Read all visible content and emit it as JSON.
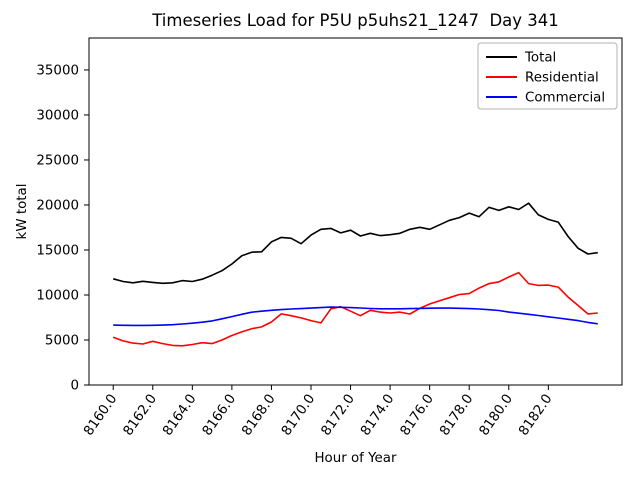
{
  "chart_data": {
    "type": "line",
    "title": "Timeseries Load for P5U p5uhs21_1247  Day 341",
    "xlabel": "Hour of Year",
    "ylabel": "kW total",
    "grid": false,
    "background": "#ffffff",
    "xlim": [
      8158.775,
      8185.725
    ],
    "ylim": [
      0,
      38550
    ],
    "xticks": {
      "values": [
        8160,
        8162,
        8164,
        8166,
        8168,
        8170,
        8172,
        8174,
        8176,
        8178,
        8180,
        8182
      ],
      "labels": [
        "8160.0",
        "8162.0",
        "8164.0",
        "8166.0",
        "8168.0",
        "8170.0",
        "8172.0",
        "8174.0",
        "8176.0",
        "8178.0",
        "8180.0",
        "8182.0"
      ]
    },
    "yticks": {
      "values": [
        0,
        5000,
        10000,
        15000,
        20000,
        25000,
        30000,
        35000
      ],
      "labels": [
        "0",
        "5000",
        "10000",
        "15000",
        "20000",
        "25000",
        "30000",
        "35000"
      ]
    },
    "legend": {
      "location": "upper right",
      "entries": [
        "Total",
        "Residential",
        "Commercial"
      ]
    },
    "x": [
      8160.0,
      8160.5,
      8161.0,
      8161.5,
      8162.0,
      8162.5,
      8163.0,
      8163.5,
      8164.0,
      8164.5,
      8165.0,
      8165.5,
      8166.0,
      8166.5,
      8167.0,
      8167.5,
      8168.0,
      8168.5,
      8169.0,
      8169.5,
      8170.0,
      8170.5,
      8171.0,
      8171.5,
      8172.0,
      8172.5,
      8173.0,
      8173.5,
      8174.0,
      8174.5,
      8175.0,
      8175.5,
      8176.0,
      8176.5,
      8177.0,
      8177.5,
      8178.0,
      8178.5,
      8179.0,
      8179.5,
      8180.0,
      8180.5,
      8181.0,
      8181.5,
      8182.0,
      8182.5,
      8183.0,
      8183.5,
      8184.0,
      8184.5
    ],
    "series": [
      {
        "name": "Total",
        "color": "#000000",
        "values": [
          11800,
          11500,
          11350,
          11520,
          11400,
          11300,
          11350,
          11600,
          11500,
          11750,
          12200,
          12700,
          13440,
          14350,
          14750,
          14800,
          15900,
          16400,
          16300,
          15700,
          16650,
          17300,
          17400,
          16900,
          17200,
          16550,
          16850,
          16600,
          16700,
          16850,
          17300,
          17520,
          17300,
          17800,
          18300,
          18600,
          19100,
          18700,
          19740,
          19400,
          19800,
          19500,
          20200,
          18900,
          18400,
          18100,
          16500,
          15200,
          14550,
          14700
        ]
      },
      {
        "name": "Residential",
        "color": "#ff0000",
        "values": [
          5300,
          4900,
          4650,
          4550,
          4850,
          4600,
          4400,
          4350,
          4500,
          4700,
          4600,
          5000,
          5500,
          5900,
          6250,
          6450,
          7000,
          7900,
          7700,
          7450,
          7150,
          6900,
          8450,
          8700,
          8200,
          7700,
          8300,
          8100,
          8000,
          8100,
          7890,
          8520,
          9000,
          9350,
          9700,
          10050,
          10150,
          10770,
          11260,
          11450,
          12000,
          12490,
          11260,
          11070,
          11100,
          10880,
          9770,
          8840,
          7900,
          8000
        ]
      },
      {
        "name": "Commercial",
        "color": "#0000ff",
        "values": [
          6650,
          6630,
          6620,
          6620,
          6630,
          6650,
          6700,
          6780,
          6870,
          6980,
          7120,
          7350,
          7600,
          7850,
          8090,
          8200,
          8300,
          8380,
          8440,
          8490,
          8540,
          8600,
          8650,
          8630,
          8600,
          8550,
          8500,
          8470,
          8460,
          8470,
          8490,
          8510,
          8530,
          8540,
          8540,
          8520,
          8490,
          8440,
          8370,
          8280,
          8100,
          7980,
          7850,
          7720,
          7580,
          7440,
          7300,
          7150,
          6950,
          6800
        ]
      }
    ]
  }
}
